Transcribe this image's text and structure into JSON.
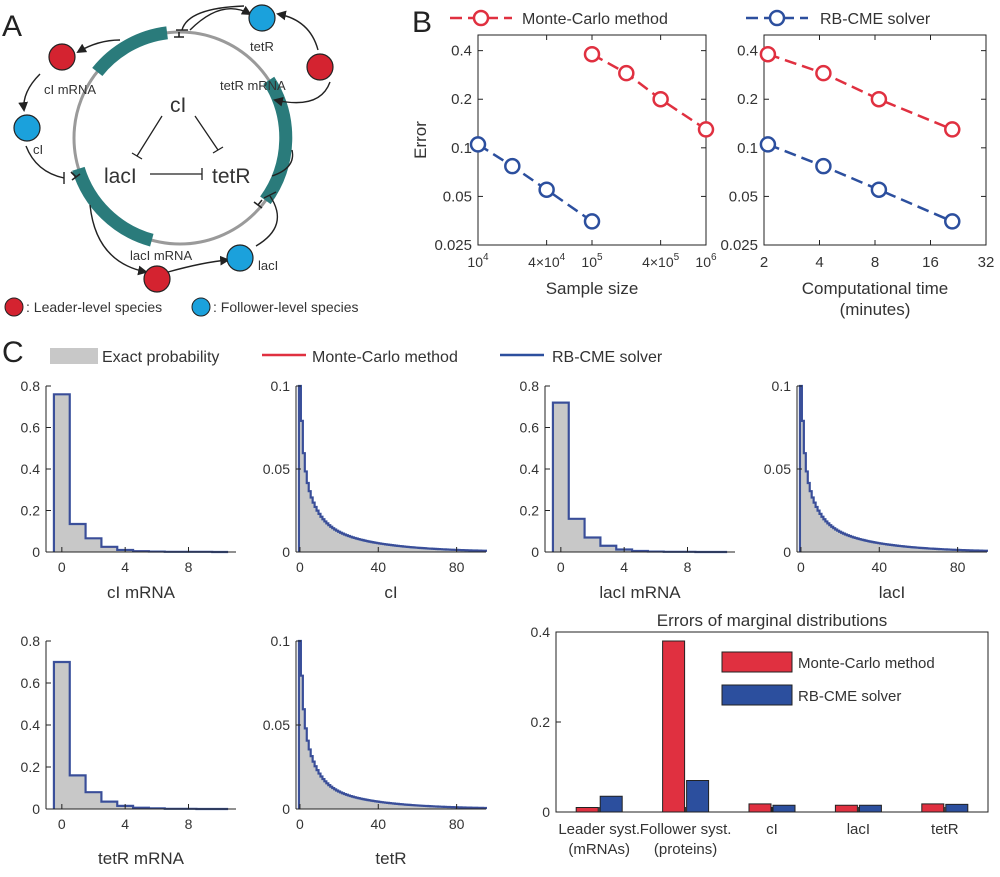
{
  "panels": {
    "a": "A",
    "b": "B",
    "c": "C"
  },
  "colors": {
    "leader": "#d42330",
    "follower": "#1ba1dc",
    "plasmid": "#2a7b7b",
    "backbone": "#9a9a9a",
    "mc": "#e03040",
    "rb": "#2c4f9e",
    "exact": "#c8c8c8"
  },
  "circuit": {
    "nodes": {
      "ci_mrna": "cI mRNA",
      "ci": "cI",
      "tetr": "tetR",
      "tetr_mrna": "tetR mRNA",
      "laci_mrna": "lacI mRNA",
      "laci": "lacI"
    },
    "center": {
      "ci": "cI",
      "laci": "lacI",
      "tetr": "tetR"
    },
    "legend": {
      "leader": ": Leader-level species",
      "follower": ": Follower-level species"
    }
  },
  "panel_b": {
    "legend": {
      "mc": "Monte-Carlo method",
      "rb": "RB-CME solver"
    }
  },
  "panel_c": {
    "legend": {
      "exact": "Exact probability",
      "mc": "Monte-Carlo method",
      "rb": "RB-CME solver"
    }
  },
  "chart_data": [
    {
      "id": "b_sample",
      "type": "line",
      "xlabel": "Sample size",
      "ylabel": "Error",
      "xscale": "log",
      "yscale": "log",
      "xlim": [
        10000,
        1000000
      ],
      "ylim": [
        0.025,
        0.5
      ],
      "xticks": [
        10000,
        40000,
        100000,
        400000,
        1000000
      ],
      "xticklabels": [
        [
          "10",
          "4"
        ],
        [
          "4×10",
          "4"
        ],
        [
          "10",
          "5"
        ],
        [
          "4×10",
          "5"
        ],
        [
          "10",
          "6"
        ]
      ],
      "yticks": [
        0.025,
        0.05,
        0.1,
        0.2,
        0.4
      ],
      "yticklabels": [
        "0.025",
        "0.05",
        "0.1",
        "0.2",
        "0.4"
      ],
      "series": [
        {
          "name": "Monte-Carlo method",
          "x": [
            100000,
            200000,
            400000,
            1000000
          ],
          "y": [
            0.38,
            0.29,
            0.2,
            0.13
          ]
        },
        {
          "name": "RB-CME solver",
          "x": [
            10000,
            20000,
            40000,
            100000
          ],
          "y": [
            0.105,
            0.077,
            0.055,
            0.035
          ]
        }
      ]
    },
    {
      "id": "b_time",
      "type": "line",
      "xlabel": "Computational time",
      "xlabel2": "(minutes)",
      "xscale": "log",
      "yscale": "log",
      "xlim": [
        2,
        32
      ],
      "ylim": [
        0.025,
        0.5
      ],
      "xticks": [
        2,
        4,
        8,
        16,
        32
      ],
      "xticklabels": [
        "2",
        "4",
        "8",
        "16",
        "32"
      ],
      "yticks": [
        0.025,
        0.05,
        0.1,
        0.2,
        0.4
      ],
      "yticklabels": [
        "0.025",
        "0.05",
        "0.1",
        "0.2",
        "0.4"
      ],
      "series": [
        {
          "name": "Monte-Carlo method",
          "x": [
            2.1,
            4.2,
            8.4,
            21
          ],
          "y": [
            0.38,
            0.29,
            0.2,
            0.13
          ]
        },
        {
          "name": "RB-CME solver",
          "x": [
            2.1,
            4.2,
            8.4,
            21
          ],
          "y": [
            0.105,
            0.077,
            0.055,
            0.035
          ]
        }
      ]
    },
    {
      "id": "c_ci_mrna",
      "type": "step",
      "xlabel": "cI mRNA",
      "xlim": [
        -1,
        11
      ],
      "ylim": [
        0,
        0.8
      ],
      "xticks": [
        0,
        4,
        8
      ],
      "yticks": [
        0,
        0.2,
        0.4,
        0.6,
        0.8
      ],
      "x": [
        0,
        1,
        2,
        3,
        4,
        5,
        6,
        7,
        8,
        9,
        10
      ],
      "values": [
        0.76,
        0.135,
        0.066,
        0.025,
        0.01,
        0.004,
        0.002,
        0.001,
        0.001,
        0.001,
        0.0
      ]
    },
    {
      "id": "c_ci",
      "type": "step",
      "xlabel": "cI",
      "xlim": [
        -2,
        95
      ],
      "ylim": [
        0,
        0.1
      ],
      "xticks": [
        0,
        40,
        80
      ],
      "yticks": [
        0,
        0.05,
        0.1
      ],
      "decay": {
        "a": 0.1,
        "b": 0.04,
        "c": 0.022,
        "d": 0.03
      }
    },
    {
      "id": "c_laci_mrna",
      "type": "step",
      "xlabel": "lacI mRNA",
      "xlim": [
        -1,
        11
      ],
      "ylim": [
        0,
        0.8
      ],
      "xticks": [
        0,
        4,
        8
      ],
      "yticks": [
        0,
        0.2,
        0.4,
        0.6,
        0.8
      ],
      "x": [
        0,
        1,
        2,
        3,
        4,
        5,
        6,
        7,
        8,
        9,
        10
      ],
      "values": [
        0.72,
        0.16,
        0.07,
        0.03,
        0.012,
        0.005,
        0.002,
        0.001,
        0.001,
        0.0,
        0.0
      ]
    },
    {
      "id": "c_laci",
      "type": "step",
      "xlabel": "lacI",
      "xlim": [
        -2,
        95
      ],
      "ylim": [
        0,
        0.1
      ],
      "xticks": [
        0,
        40,
        80
      ],
      "yticks": [
        0,
        0.05,
        0.1
      ],
      "decay": {
        "a": 0.1,
        "b": 0.04,
        "c": 0.022,
        "d": 0.03
      }
    },
    {
      "id": "c_tetr_mrna",
      "type": "step",
      "xlabel": "tetR mRNA",
      "xlim": [
        -1,
        11
      ],
      "ylim": [
        0,
        0.8
      ],
      "xticks": [
        0,
        4,
        8
      ],
      "yticks": [
        0,
        0.2,
        0.4,
        0.6,
        0.8
      ],
      "x": [
        0,
        1,
        2,
        3,
        4,
        5,
        6,
        7,
        8,
        9,
        10
      ],
      "values": [
        0.7,
        0.16,
        0.08,
        0.035,
        0.015,
        0.006,
        0.003,
        0.001,
        0.001,
        0.0,
        0.0
      ]
    },
    {
      "id": "c_tetr",
      "type": "step",
      "xlabel": "tetR",
      "xlim": [
        -2,
        95
      ],
      "ylim": [
        0,
        0.1
      ],
      "xticks": [
        0,
        40,
        80
      ],
      "yticks": [
        0,
        0.05,
        0.1
      ],
      "decay": {
        "a": 0.1,
        "b": 0.045,
        "c": 0.018,
        "d": 0.035
      }
    },
    {
      "id": "c_errors",
      "type": "bar",
      "title": "Errors of marginal distributions",
      "categories": [
        [
          "Leader syst.",
          "(mRNAs)"
        ],
        [
          "Follower syst.",
          "(proteins)"
        ],
        [
          "cI"
        ],
        [
          "lacI"
        ],
        [
          "tetR"
        ]
      ],
      "ylim": [
        0,
        0.4
      ],
      "yticks": [
        0,
        0.2,
        0.4
      ],
      "series": [
        {
          "name": "Monte-Carlo method",
          "values": [
            0.01,
            0.38,
            0.018,
            0.015,
            0.018
          ]
        },
        {
          "name": "RB-CME solver",
          "values": [
            0.035,
            0.07,
            0.015,
            0.015,
            0.017
          ]
        }
      ]
    }
  ]
}
